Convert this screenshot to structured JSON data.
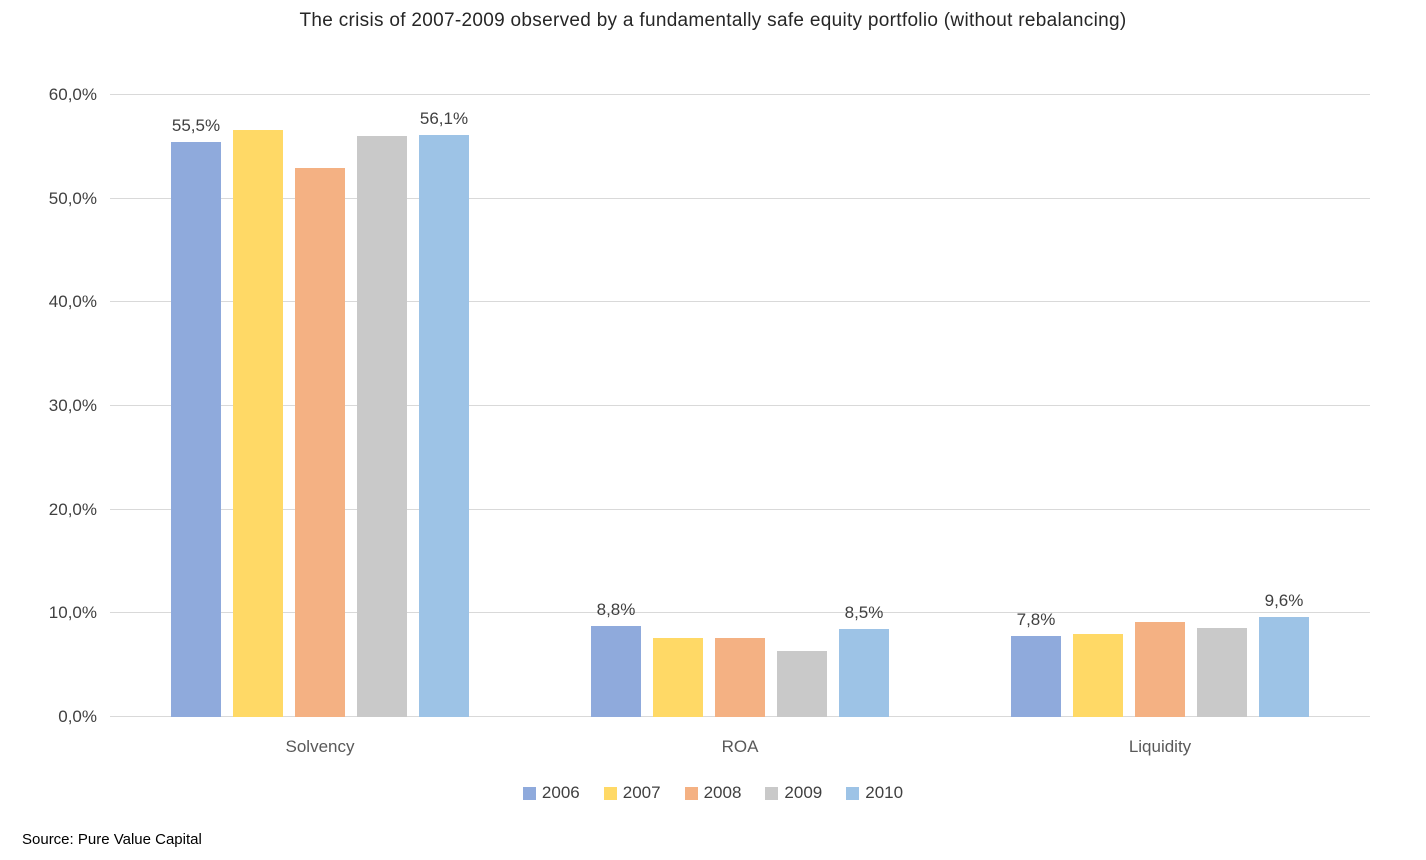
{
  "title": "The crisis of 2007-2009 observed by a fundamentally safe equity portfolio (without rebalancing)",
  "source": "Source: Pure Value Capital",
  "chart_data": {
    "type": "bar",
    "title": "The crisis of 2007-2009 observed by a fundamentally safe equity portfolio (without rebalancing)",
    "categories": [
      "Solvency",
      "ROA",
      "Liquidity"
    ],
    "series": [
      {
        "name": "2006",
        "color": "#8FAADC",
        "values": [
          55.5,
          8.8,
          7.8
        ],
        "labels": [
          "55,5%",
          "8,8%",
          "7,8%"
        ]
      },
      {
        "name": "2007",
        "color": "#FFD966",
        "values": [
          56.6,
          7.6,
          8.0
        ],
        "labels": [
          null,
          null,
          null
        ]
      },
      {
        "name": "2008",
        "color": "#F4B183",
        "values": [
          53.0,
          7.6,
          9.2
        ],
        "labels": [
          null,
          null,
          null
        ]
      },
      {
        "name": "2009",
        "color": "#C9C9C9",
        "values": [
          56.0,
          6.4,
          8.6
        ],
        "labels": [
          null,
          null,
          null
        ]
      },
      {
        "name": "2010",
        "color": "#9DC3E6",
        "values": [
          56.1,
          8.5,
          9.6
        ],
        "labels": [
          "56,1%",
          "8,5%",
          "9,6%"
        ]
      }
    ],
    "ylim": [
      0,
      60
    ],
    "yticks": [
      0,
      10,
      20,
      30,
      40,
      50,
      60
    ],
    "ytick_labels": [
      "0,0%",
      "10,0%",
      "20,0%",
      "30,0%",
      "40,0%",
      "50,0%",
      "60,0%"
    ],
    "grid": true,
    "legend_position": "bottom",
    "legend": [
      "2006",
      "2007",
      "2008",
      "2009",
      "2010"
    ],
    "number_format": "comma-decimal-percent"
  }
}
